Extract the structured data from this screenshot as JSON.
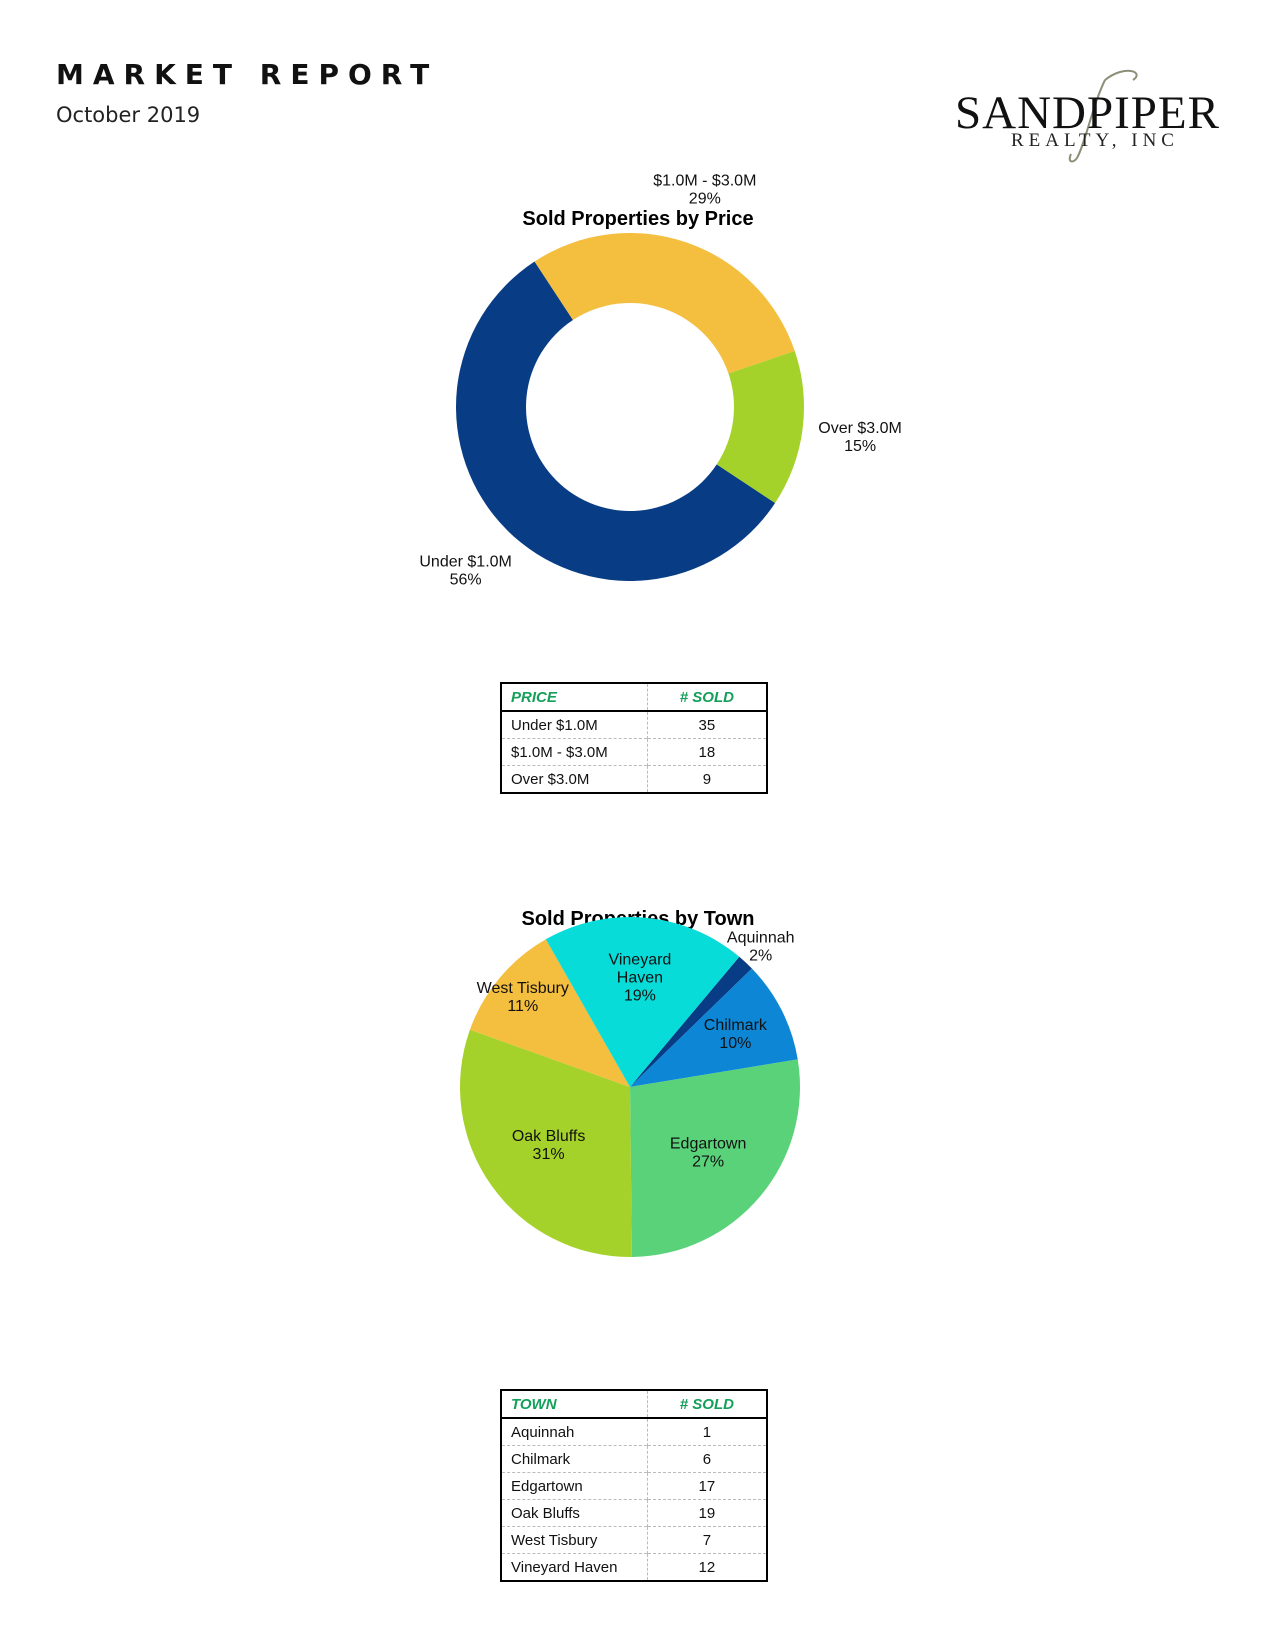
{
  "header": {
    "title": "MARKET REPORT",
    "date": "October 2019"
  },
  "logo": {
    "wordmark": "SANDPIPER",
    "subtext": "REALTY, INC"
  },
  "chart_data": [
    {
      "type": "pie",
      "style": "donut",
      "title": "Sold Properties by Price",
      "categories": [
        "Under $1.0M",
        "$1.0M - $3.0M",
        "Over $3.0M"
      ],
      "values": [
        35,
        18,
        9
      ],
      "labels_pct": [
        "56%",
        "29%",
        "15%"
      ],
      "colors": [
        "#083d85",
        "#f4be3e",
        "#a5d22a"
      ]
    },
    {
      "type": "pie",
      "title": "Sold Properties by Town",
      "categories": [
        "Aquinnah",
        "Chilmark",
        "Edgartown",
        "Oak Bluffs",
        "West Tisbury",
        "Vineyard Haven"
      ],
      "values": [
        1,
        6,
        17,
        19,
        7,
        12
      ],
      "labels_pct": [
        "2%",
        "10%",
        "27%",
        "31%",
        "11%",
        "19%"
      ],
      "colors": [
        "#083d85",
        "#0e86d6",
        "#5ad27a",
        "#a5d22a",
        "#f4be3e",
        "#08dcd8"
      ]
    }
  ],
  "price_table": {
    "headers": [
      "PRICE",
      "# SOLD"
    ],
    "rows": [
      [
        "Under $1.0M",
        "35"
      ],
      [
        "$1.0M - $3.0M",
        "18"
      ],
      [
        "Over $3.0M",
        "9"
      ]
    ]
  },
  "town_table": {
    "headers": [
      "TOWN",
      "# SOLD"
    ],
    "rows": [
      [
        "Aquinnah",
        "1"
      ],
      [
        "Chilmark",
        "6"
      ],
      [
        "Edgartown",
        "17"
      ],
      [
        "Oak Bluffs",
        "19"
      ],
      [
        "West Tisbury",
        "7"
      ],
      [
        "Vineyard Haven",
        "12"
      ]
    ]
  }
}
